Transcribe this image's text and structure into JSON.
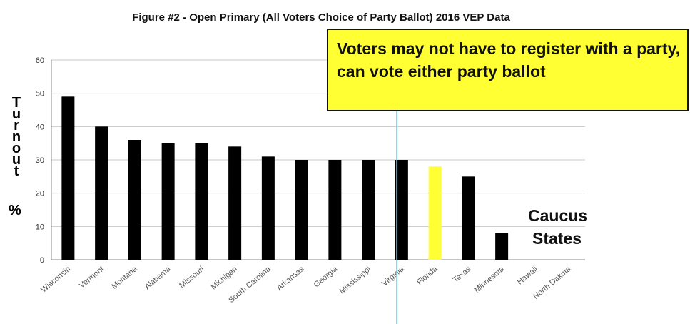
{
  "chart_data": {
    "type": "bar",
    "title": "Figure #2 - Open Primary (All Voters Choice of Party Ballot) 2016 VEP Data",
    "ylabel": "Turnout",
    "ylabel_unit": "%",
    "ylim": [
      0,
      60
    ],
    "yticks": [
      "0",
      "10",
      "20",
      "30",
      "40",
      "50",
      "60"
    ],
    "grid": true,
    "categories": [
      "Wisconsin",
      "Vermont",
      "Montana",
      "Alabama",
      "Missouri",
      "Michigan",
      "South Carolina",
      "Arkansas",
      "Georgia",
      "Mississippi",
      "Virginia",
      "Florida",
      "Texas",
      "Minnesota",
      "Hawaii",
      "North Dakota"
    ],
    "values": [
      49,
      40,
      36,
      35,
      35,
      34,
      31,
      30,
      30,
      30,
      30,
      28,
      25,
      8,
      null,
      null
    ],
    "highlight_index": 11,
    "colors": {
      "bar": "#000000",
      "highlight": "#ffff33",
      "grid": "#c8c8c8",
      "divider": "#66ccdd"
    }
  },
  "annotations": {
    "callout_text": "Voters may not have to register with a party, can vote either party ballot",
    "caucus_line1": "Caucus",
    "caucus_line2": "States"
  }
}
